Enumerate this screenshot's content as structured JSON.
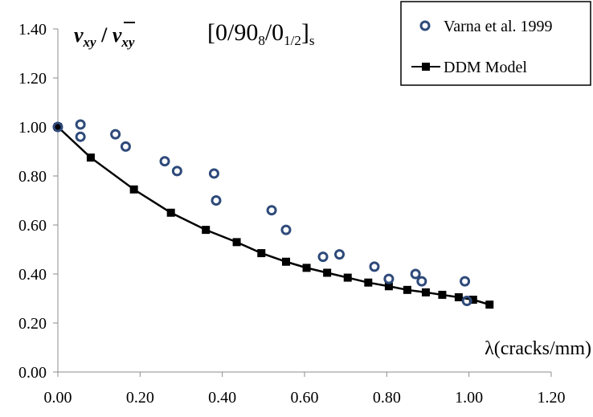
{
  "chart_data": {
    "type": "scatter",
    "title": {
      "base": "[0/90",
      "sub1": "8",
      "mid": "/0",
      "sub2": "1/2",
      "end": "]",
      "sub3": "s"
    },
    "ylabel": {
      "v1": "v",
      "sub1": "xy",
      "sep": " / ",
      "v2": "v",
      "sub2": "xy"
    },
    "xlabel": "λ(cracks/mm)",
    "xlim": [
      0,
      1.2
    ],
    "ylim": [
      0,
      1.4
    ],
    "xticks": [
      "0.00",
      "0.20",
      "0.40",
      "0.60",
      "0.80",
      "1.00",
      "1.20"
    ],
    "yticks": [
      "0.00",
      "0.20",
      "0.40",
      "0.60",
      "0.80",
      "1.00",
      "1.20",
      "1.40"
    ],
    "grid": false,
    "legend_position": "top-right",
    "series": [
      {
        "name": "Varna et al. 1999",
        "marker": "open-circle",
        "color": "#2e4a7a",
        "points": [
          [
            0.0,
            1.0
          ],
          [
            0.055,
            1.01
          ],
          [
            0.055,
            0.96
          ],
          [
            0.14,
            0.97
          ],
          [
            0.165,
            0.92
          ],
          [
            0.26,
            0.86
          ],
          [
            0.29,
            0.82
          ],
          [
            0.38,
            0.81
          ],
          [
            0.385,
            0.7
          ],
          [
            0.52,
            0.66
          ],
          [
            0.555,
            0.58
          ],
          [
            0.645,
            0.47
          ],
          [
            0.685,
            0.48
          ],
          [
            0.77,
            0.43
          ],
          [
            0.805,
            0.38
          ],
          [
            0.87,
            0.4
          ],
          [
            0.885,
            0.37
          ],
          [
            0.99,
            0.37
          ],
          [
            0.995,
            0.29
          ]
        ]
      },
      {
        "name": "DDM Model",
        "marker": "filled-square",
        "color": "#000000",
        "points": [
          [
            0.0,
            1.0
          ],
          [
            0.08,
            0.875
          ],
          [
            0.185,
            0.745
          ],
          [
            0.275,
            0.65
          ],
          [
            0.36,
            0.58
          ],
          [
            0.435,
            0.53
          ],
          [
            0.495,
            0.485
          ],
          [
            0.555,
            0.45
          ],
          [
            0.605,
            0.425
          ],
          [
            0.655,
            0.405
          ],
          [
            0.705,
            0.385
          ],
          [
            0.755,
            0.365
          ],
          [
            0.805,
            0.35
          ],
          [
            0.85,
            0.335
          ],
          [
            0.895,
            0.325
          ],
          [
            0.935,
            0.315
          ],
          [
            0.975,
            0.305
          ],
          [
            1.01,
            0.295
          ],
          [
            1.05,
            0.275
          ]
        ]
      }
    ]
  }
}
